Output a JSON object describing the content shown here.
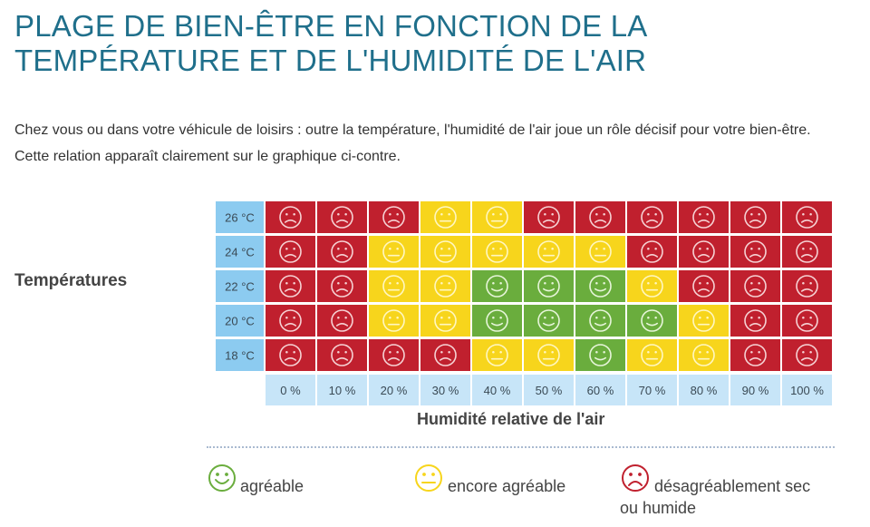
{
  "title": "PLAGE DE BIEN-ÊTRE EN FONCTION DE LA\nTEMPÉRATURE ET DE L'HUMIDITÉ DE L'AIR",
  "intro": "Chez vous ou dans votre véhicule de loisirs : outre la température, l'humidité de l'air joue un rôle décisif pour votre bien-être. Cette relation apparaît clairement sur le graphique ci-contre.",
  "colors": {
    "agreable": "#6aad3d",
    "encore_agreable": "#f7d51c",
    "desagreable": "#c0202e",
    "axis_cell": "#8ccbf0",
    "humidity_cell": "#c7e5f8",
    "title": "#1f6f8b"
  },
  "chart_data": {
    "type": "heatmap",
    "ylabel": "Températures",
    "xlabel": "Humidité relative de l'air",
    "x": [
      "0 %",
      "10 %",
      "20 %",
      "30 %",
      "40 %",
      "50 %",
      "60 %",
      "70 %",
      "80 %",
      "90 %",
      "100 %"
    ],
    "y": [
      "26 °C",
      "24 °C",
      "22 °C",
      "20 °C",
      "18 °C"
    ],
    "values": [
      [
        "desagreable",
        "desagreable",
        "desagreable",
        "encore_agreable",
        "encore_agreable",
        "desagreable",
        "desagreable",
        "desagreable",
        "desagreable",
        "desagreable",
        "desagreable"
      ],
      [
        "desagreable",
        "desagreable",
        "encore_agreable",
        "encore_agreable",
        "encore_agreable",
        "encore_agreable",
        "encore_agreable",
        "desagreable",
        "desagreable",
        "desagreable",
        "desagreable"
      ],
      [
        "desagreable",
        "desagreable",
        "encore_agreable",
        "encore_agreable",
        "agreable",
        "agreable",
        "agreable",
        "encore_agreable",
        "desagreable",
        "desagreable",
        "desagreable"
      ],
      [
        "desagreable",
        "desagreable",
        "encore_agreable",
        "encore_agreable",
        "agreable",
        "agreable",
        "agreable",
        "agreable",
        "encore_agreable",
        "desagreable",
        "desagreable"
      ],
      [
        "desagreable",
        "desagreable",
        "desagreable",
        "desagreable",
        "encore_agreable",
        "encore_agreable",
        "agreable",
        "encore_agreable",
        "encore_agreable",
        "desagreable",
        "desagreable"
      ]
    ],
    "legend": [
      {
        "key": "agreable",
        "label": "agréable",
        "icon": "smiley-happy-icon"
      },
      {
        "key": "encore_agreable",
        "label": "encore agréable",
        "icon": "smiley-neutral-icon"
      },
      {
        "key": "desagreable",
        "label": "désagréablement sec\nou humide",
        "icon": "smiley-sad-icon"
      }
    ]
  }
}
